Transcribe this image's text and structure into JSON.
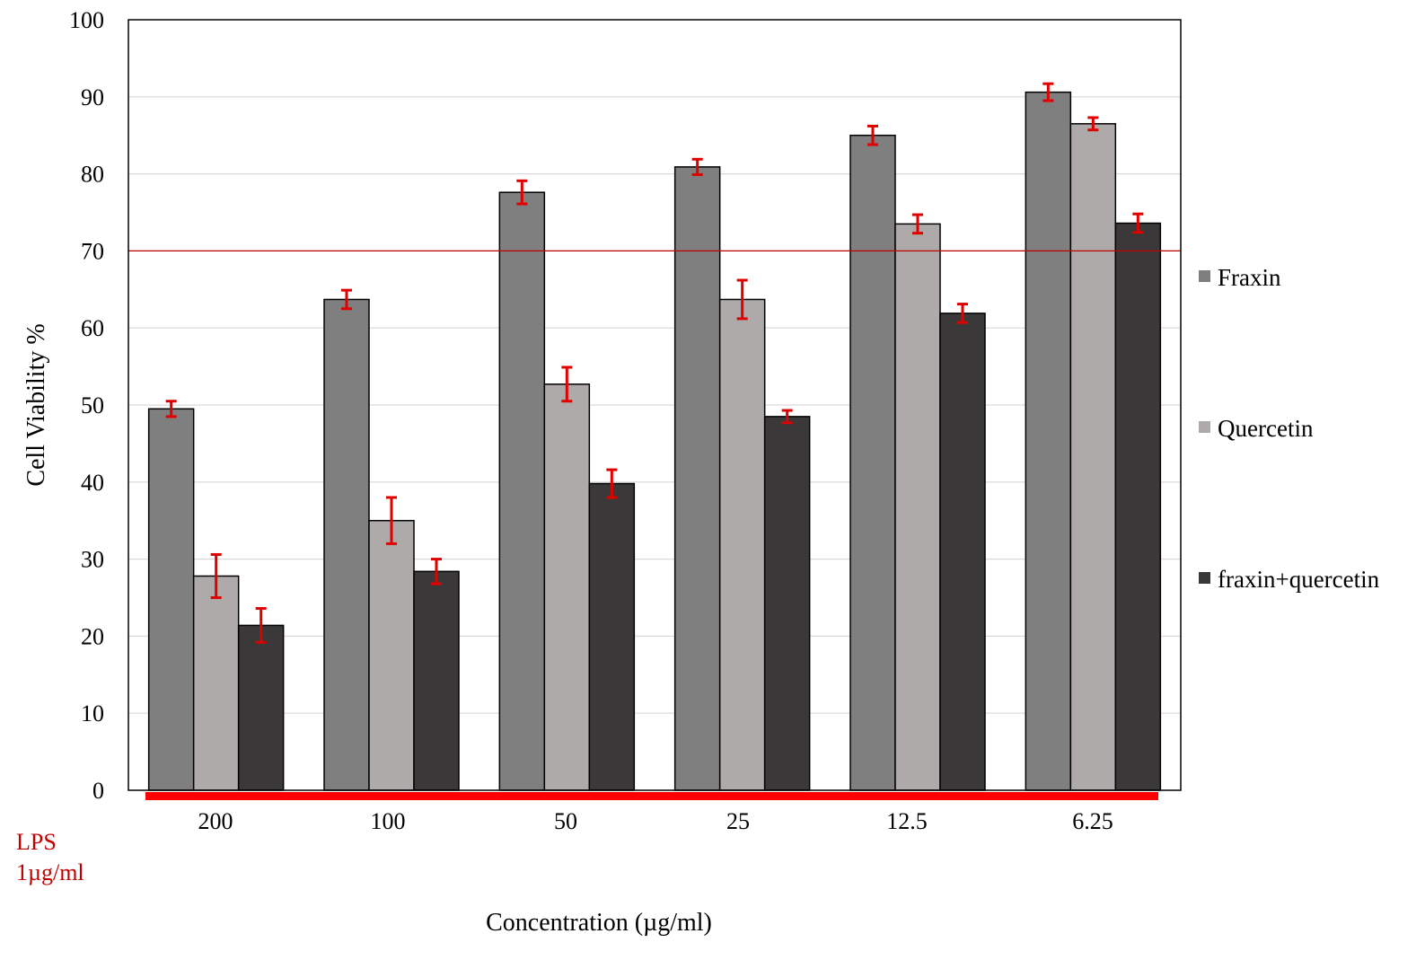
{
  "chart_data": {
    "type": "bar",
    "title": "",
    "xlabel": "Concentration (µg/ml)",
    "ylabel": "Cell Viability %",
    "ylim": [
      0,
      100
    ],
    "yticks": [
      0,
      10,
      20,
      30,
      40,
      50,
      60,
      70,
      80,
      90,
      100
    ],
    "categories": [
      "200",
      "100",
      "50",
      "25",
      "12.5",
      "6.25"
    ],
    "series": [
      {
        "name": "Fraxin",
        "color": "#7f7f7f",
        "values": [
          49.5,
          63.7,
          77.6,
          80.9,
          85.0,
          90.6
        ],
        "errors": [
          1.0,
          1.2,
          1.5,
          1.0,
          1.2,
          1.1
        ]
      },
      {
        "name": "Quercetin",
        "color": "#aeaaaa",
        "values": [
          27.8,
          35.0,
          52.7,
          63.7,
          73.5,
          86.5
        ],
        "errors": [
          2.8,
          3.0,
          2.2,
          2.5,
          1.2,
          0.8
        ]
      },
      {
        "name": "fraxin+quercetin",
        "color": "#3a3838",
        "values": [
          21.4,
          28.4,
          39.8,
          48.5,
          61.9,
          73.6
        ],
        "errors": [
          2.2,
          1.6,
          1.8,
          0.8,
          1.2,
          1.2
        ]
      }
    ],
    "reference_line": {
      "value": 70,
      "color": "#c00000"
    },
    "lps_label": [
      "LPS",
      "1µg/ml"
    ],
    "lps_bar_color": "#ff0000",
    "error_bar_color": "#e00000",
    "grid": true,
    "gridline_color": "#d9d9d9",
    "legend_position": "right"
  }
}
